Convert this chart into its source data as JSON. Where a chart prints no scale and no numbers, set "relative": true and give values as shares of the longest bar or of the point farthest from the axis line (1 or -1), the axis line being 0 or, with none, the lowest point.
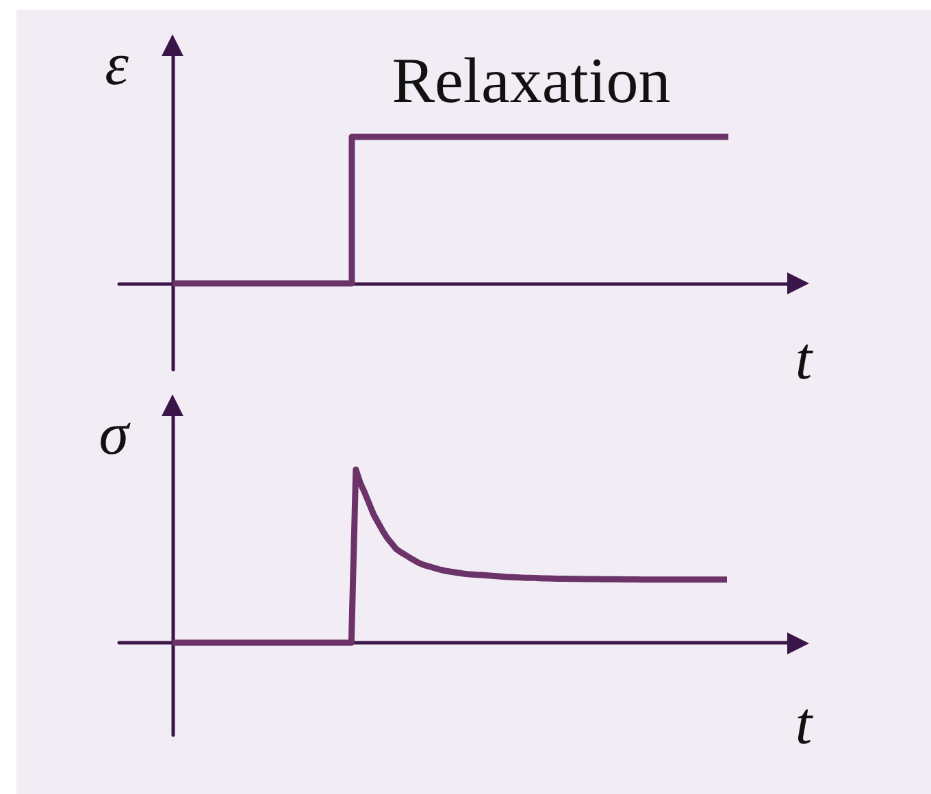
{
  "chart_data": [
    {
      "type": "step",
      "title": "Relaxation",
      "xlabel": "t",
      "ylabel": "ε",
      "relative": true,
      "tick_labels": false,
      "categories": [
        null,
        null,
        null,
        null,
        null,
        null,
        null,
        null,
        null,
        null,
        null,
        null,
        null,
        null,
        null,
        null,
        null,
        null,
        null,
        null,
        null,
        null,
        null,
        null,
        null,
        null,
        null,
        null,
        null,
        null,
        null,
        null
      ],
      "series": [
        {
          "color": "#6b3368",
          "values": [
            0,
            0,
            0,
            0,
            0,
            0,
            0,
            0,
            0,
            0,
            1,
            1,
            1,
            1,
            1,
            1,
            1,
            1,
            1,
            1,
            1,
            1,
            1,
            1,
            1,
            1,
            1,
            1,
            1,
            1,
            1,
            1
          ]
        }
      ]
    },
    {
      "type": "line",
      "xlabel": "t",
      "ylabel": "σ",
      "relative": true,
      "tick_labels": false,
      "categories": [
        null,
        null,
        null,
        null,
        null,
        null,
        null,
        null,
        null,
        null,
        null,
        null,
        null,
        null,
        null,
        null,
        null,
        null,
        null,
        null,
        null,
        null,
        null,
        null,
        null,
        null,
        null,
        null,
        null,
        null,
        null,
        null,
        null,
        null,
        null,
        null,
        null,
        null,
        null,
        null,
        null,
        null,
        null,
        null,
        null,
        null,
        null,
        null,
        null,
        null,
        null,
        null,
        null,
        null,
        null,
        null,
        null,
        null,
        null,
        null,
        null,
        null,
        null,
        null,
        null,
        null,
        null,
        null,
        null,
        null,
        null,
        null,
        null,
        null,
        null,
        null,
        null,
        null,
        null,
        null,
        null,
        null,
        null,
        null,
        null,
        null,
        null,
        null,
        null,
        null,
        null,
        null,
        null,
        null,
        null,
        null,
        null,
        null,
        null,
        null,
        null,
        null,
        null,
        null,
        null,
        null,
        null,
        null,
        null,
        null,
        null,
        null,
        null,
        null,
        null,
        null,
        null,
        null,
        null,
        null,
        null,
        null,
        null,
        null,
        null
      ],
      "series": [
        {
          "color": "#6b3368",
          "values": [
            0,
            0,
            0,
            0,
            0,
            0,
            0,
            0,
            0,
            0,
            0,
            0,
            0,
            0,
            0,
            0,
            0,
            0,
            0,
            0,
            0,
            0,
            0,
            0,
            0,
            0,
            0,
            0,
            0,
            0,
            0,
            0,
            0,
            0,
            0,
            0,
            0,
            0,
            0,
            0,
            0,
            1,
            0.922,
            0.865,
            0.802,
            0.739,
            0.692,
            0.646,
            0.605,
            0.574,
            0.542,
            0.523,
            0.508,
            0.492,
            0.477,
            0.462,
            0.451,
            0.443,
            0.436,
            0.428,
            0.421,
            0.415,
            0.411,
            0.407,
            0.403,
            0.399,
            0.396,
            0.394,
            0.392,
            0.391,
            0.389,
            0.387,
            0.385,
            0.383,
            0.381,
            0.379,
            0.378,
            0.377,
            0.376,
            0.375,
            0.375,
            0.374,
            0.373,
            0.372,
            0.372,
            0.371,
            0.37,
            0.37,
            0.37,
            0.369,
            0.369,
            0.369,
            0.368,
            0.368,
            0.368,
            0.368,
            0.367,
            0.367,
            0.367,
            0.367,
            0.367,
            0.366,
            0.366,
            0.366,
            0.366,
            0.365,
            0.365,
            0.365,
            0.365,
            0.365,
            0.365,
            0.365,
            0.365,
            0.365,
            0.365,
            0.365,
            0.365,
            0.365,
            0.365,
            0.365,
            0.365,
            0.365,
            0.365,
            0.365,
            0.365
          ]
        }
      ]
    }
  ]
}
